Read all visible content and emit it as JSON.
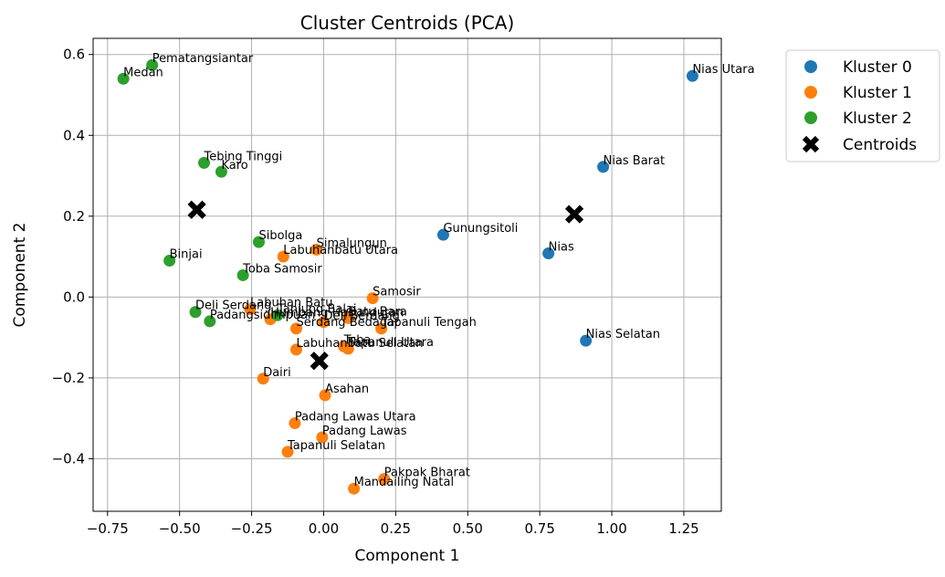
{
  "chart_data": {
    "type": "scatter",
    "title": "Cluster Centroids (PCA)",
    "xlabel": "Component 1",
    "ylabel": "Component 2",
    "xlim": [
      -0.8,
      1.38
    ],
    "ylim": [
      -0.53,
      0.64
    ],
    "x_ticks": [
      -0.75,
      -0.5,
      -0.25,
      0.0,
      0.25,
      0.5,
      0.75,
      1.0,
      1.25
    ],
    "x_tick_labels": [
      "−0.75",
      "−0.50",
      "−0.25",
      "0.00",
      "0.25",
      "0.50",
      "0.75",
      "1.00",
      "1.25"
    ],
    "y_ticks": [
      -0.4,
      -0.2,
      0.0,
      0.2,
      0.4,
      0.6
    ],
    "y_tick_labels": [
      "−0.4",
      "−0.2",
      "0.0",
      "0.2",
      "0.4",
      "0.6"
    ],
    "grid": true,
    "legend_position": "outside-top-right",
    "series": [
      {
        "name": "Kluster 0",
        "color": "#1f77b4",
        "points": [
          {
            "label": "Nias Utara",
            "x": 1.28,
            "y": 0.547
          },
          {
            "label": "Nias Barat",
            "x": 0.97,
            "y": 0.322
          },
          {
            "label": "Gunungsitoli",
            "x": 0.415,
            "y": 0.154
          },
          {
            "label": "Nias",
            "x": 0.78,
            "y": 0.108
          },
          {
            "label": "Nias Selatan",
            "x": 0.91,
            "y": -0.108
          }
        ]
      },
      {
        "name": "Kluster 1",
        "color": "#ff7f0e",
        "points": [
          {
            "label": "Simalungun",
            "x": -0.025,
            "y": 0.117
          },
          {
            "label": "Labuhanbatu Utara",
            "x": -0.14,
            "y": 0.1
          },
          {
            "label": "Samosir",
            "x": 0.17,
            "y": -0.003
          },
          {
            "label": "Labuhan Batu",
            "x": -0.255,
            "y": -0.03
          },
          {
            "label": "Humbang Hasundutan",
            "x": -0.185,
            "y": -0.055
          },
          {
            "label": "Deli Serdang",
            "x": 0.0,
            "y": -0.062
          },
          {
            "label": "Batu Bara",
            "x": 0.085,
            "y": -0.052
          },
          {
            "label": "Serdang Bedagai",
            "x": -0.095,
            "y": -0.078
          },
          {
            "label": "Tapanuli Tengah",
            "x": 0.2,
            "y": -0.078
          },
          {
            "label": "Toba",
            "x": 0.07,
            "y": -0.122
          },
          {
            "label": "Labuhanbatu Selatan",
            "x": -0.095,
            "y": -0.13
          },
          {
            "label": "Tapanuli Utara",
            "x": 0.085,
            "y": -0.128
          },
          {
            "label": "Dairi",
            "x": -0.21,
            "y": -0.202
          },
          {
            "label": "Asahan",
            "x": 0.005,
            "y": -0.243
          },
          {
            "label": "Padang Lawas Utara",
            "x": -0.1,
            "y": -0.312
          },
          {
            "label": "Padang Lawas",
            "x": -0.005,
            "y": -0.347
          },
          {
            "label": "Tapanuli Selatan",
            "x": -0.125,
            "y": -0.383
          },
          {
            "label": "Pakpak Bharat",
            "x": 0.21,
            "y": -0.45
          },
          {
            "label": "Mandailing Natal",
            "x": 0.105,
            "y": -0.474
          }
        ]
      },
      {
        "name": "Kluster 2",
        "color": "#2ca02c",
        "points": [
          {
            "label": "Pematangsiantar",
            "x": -0.595,
            "y": 0.574
          },
          {
            "label": "Medan",
            "x": -0.695,
            "y": 0.54
          },
          {
            "label": "Tebing Tinggi",
            "x": -0.415,
            "y": 0.332
          },
          {
            "label": "Karo",
            "x": -0.355,
            "y": 0.31
          },
          {
            "label": "Sibolga",
            "x": -0.225,
            "y": 0.136
          },
          {
            "label": "Binjai",
            "x": -0.535,
            "y": 0.09
          },
          {
            "label": "Toba Samosir",
            "x": -0.28,
            "y": 0.054
          },
          {
            "label": "Deli Serdang",
            "x": -0.445,
            "y": -0.037
          },
          {
            "label": "Padangsidimpuan",
            "x": -0.395,
            "y": -0.06
          },
          {
            "label": "Tanjung Balai",
            "x": -0.16,
            "y": -0.045
          }
        ]
      }
    ],
    "centroids": {
      "name": "Centroids",
      "color": "#000000",
      "points": [
        {
          "x": -0.44,
          "y": 0.216
        },
        {
          "x": 0.87,
          "y": 0.205
        },
        {
          "x": -0.015,
          "y": -0.158
        }
      ]
    }
  }
}
